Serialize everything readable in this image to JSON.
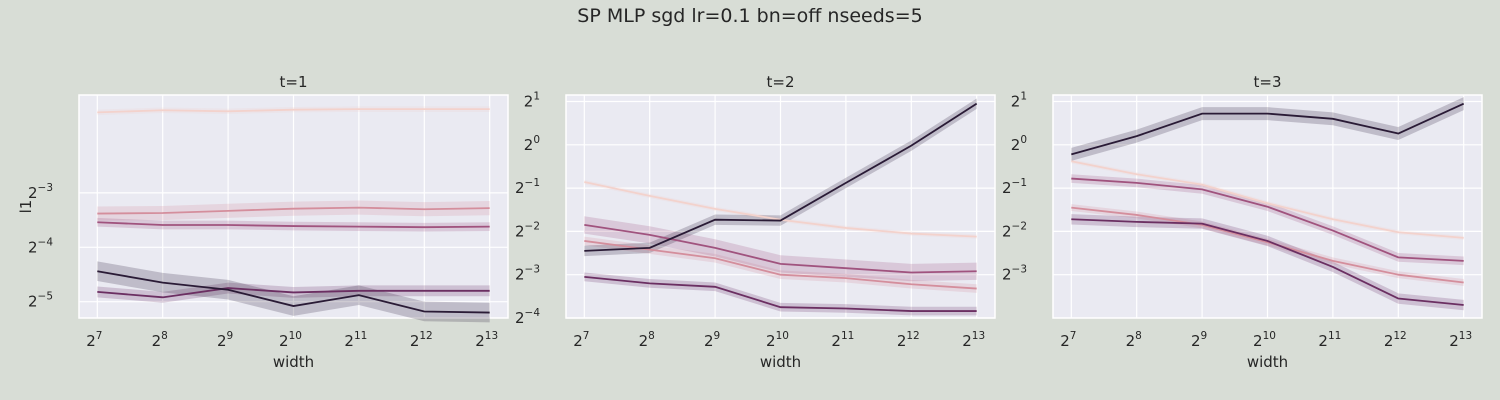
{
  "figure": {
    "title": "SP MLP sgd lr=0.1 bn=off nseeds=5"
  },
  "chart_data": [
    {
      "type": "line",
      "title": "t=1",
      "xlabel": "width",
      "ylabel": "l1",
      "x_scale": "log2",
      "y_scale": "log2",
      "x": [
        7,
        8,
        9,
        10,
        11,
        12,
        13
      ],
      "x_tick_labels": [
        "7",
        "8",
        "9",
        "10",
        "11",
        "12",
        "13"
      ],
      "y_tick_labels": [
        "-5",
        "-4",
        "-3"
      ],
      "ylim_log2": [
        -5.3,
        -1.2
      ],
      "colors": [
        "#f3d2cc",
        "#d48e9c",
        "#a0537e",
        "#6b2f62",
        "#2a1b36"
      ],
      "series": [
        {
          "values": [
            -1.52,
            -1.48,
            -1.5,
            -1.47,
            -1.46,
            -1.46,
            -1.46
          ],
          "band": 0.05
        },
        {
          "values": [
            -3.38,
            -3.37,
            -3.33,
            -3.29,
            -3.27,
            -3.3,
            -3.28
          ],
          "band": 0.13
        },
        {
          "values": [
            -3.54,
            -3.59,
            -3.59,
            -3.61,
            -3.62,
            -3.63,
            -3.62
          ],
          "band": 0.08
        },
        {
          "values": [
            -4.82,
            -4.92,
            -4.75,
            -4.83,
            -4.8,
            -4.8,
            -4.8
          ],
          "band": 0.1
        },
        {
          "values": [
            -4.44,
            -4.65,
            -4.78,
            -5.08,
            -4.88,
            -5.18,
            -5.2
          ],
          "band": 0.18
        }
      ]
    },
    {
      "type": "line",
      "title": "t=2",
      "xlabel": "width",
      "ylabel": "",
      "x_scale": "log2",
      "y_scale": "log2",
      "x": [
        7,
        8,
        9,
        10,
        11,
        12,
        13
      ],
      "x_tick_labels": [
        "7",
        "8",
        "9",
        "10",
        "11",
        "12",
        "13"
      ],
      "y_tick_labels": [
        "-4",
        "-3",
        "-2",
        "-1",
        "0",
        "1"
      ],
      "ylim_log2": [
        -4.0,
        1.15
      ],
      "colors": [
        "#f3d2cc",
        "#d48e9c",
        "#a0537e",
        "#6b2f62",
        "#2a1b36"
      ],
      "series": [
        {
          "values": [
            -0.86,
            -1.18,
            -1.48,
            -1.73,
            -1.92,
            -2.05,
            -2.12
          ],
          "band": 0.05
        },
        {
          "values": [
            -2.22,
            -2.42,
            -2.62,
            -3.0,
            -3.08,
            -3.22,
            -3.32
          ],
          "band": 0.1
        },
        {
          "values": [
            -1.85,
            -2.08,
            -2.38,
            -2.75,
            -2.85,
            -2.95,
            -2.92
          ],
          "band": 0.2
        },
        {
          "values": [
            -3.05,
            -3.2,
            -3.28,
            -3.75,
            -3.78,
            -3.84,
            -3.84
          ],
          "band": 0.1
        },
        {
          "values": [
            -2.45,
            -2.38,
            -1.73,
            -1.75,
            -0.88,
            -0.02,
            0.95
          ],
          "band": 0.12
        }
      ]
    },
    {
      "type": "line",
      "title": "t=3",
      "xlabel": "width",
      "ylabel": "",
      "x_scale": "log2",
      "y_scale": "log2",
      "x": [
        7,
        8,
        9,
        10,
        11,
        12,
        13
      ],
      "x_tick_labels": [
        "7",
        "8",
        "9",
        "10",
        "11",
        "12",
        "13"
      ],
      "y_tick_labels": [
        "-3",
        "-2",
        "-1",
        "0",
        "1"
      ],
      "ylim_log2": [
        -4.0,
        1.15
      ],
      "colors": [
        "#f3d2cc",
        "#d48e9c",
        "#a0537e",
        "#6b2f62",
        "#2a1b36"
      ],
      "series": [
        {
          "values": [
            -0.38,
            -0.68,
            -0.92,
            -1.35,
            -1.72,
            -2.02,
            -2.15
          ],
          "band": 0.05
        },
        {
          "values": [
            -1.45,
            -1.62,
            -1.85,
            -2.25,
            -2.68,
            -3.0,
            -3.18
          ],
          "band": 0.08
        },
        {
          "values": [
            -0.78,
            -0.88,
            -1.03,
            -1.43,
            -1.98,
            -2.6,
            -2.68
          ],
          "band": 0.1
        },
        {
          "values": [
            -1.72,
            -1.78,
            -1.82,
            -2.22,
            -2.82,
            -3.55,
            -3.7
          ],
          "band": 0.12
        },
        {
          "values": [
            -0.22,
            0.2,
            0.72,
            0.72,
            0.6,
            0.26,
            0.95
          ],
          "band": 0.15
        }
      ]
    }
  ]
}
